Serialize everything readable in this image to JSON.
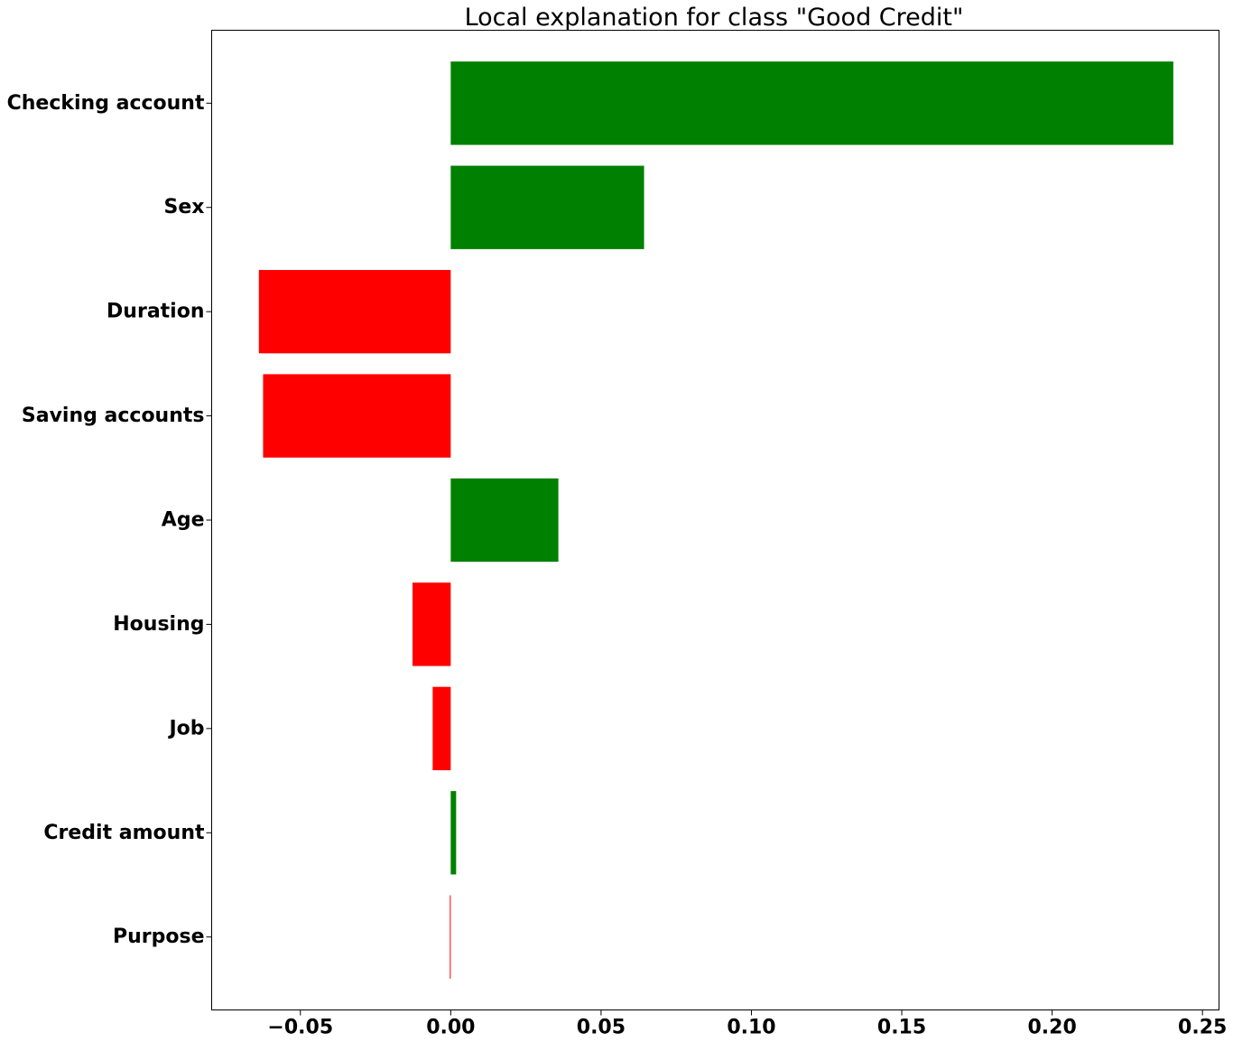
{
  "chart_data": {
    "type": "bar",
    "orientation": "horizontal",
    "title": "Local explanation for class \"Good Credit\"",
    "xlabel": "",
    "ylabel": "",
    "xlim": [
      -0.0795,
      0.2555
    ],
    "ylim": [
      -0.7,
      8.7
    ],
    "grid": false,
    "categories": [
      "Purpose",
      "Credit amount",
      "Job",
      "Housing",
      "Age",
      "Saving accounts",
      "Duration",
      "Sex",
      "Checking account"
    ],
    "values": [
      -0.0003,
      0.0018,
      -0.006,
      -0.0127,
      0.0358,
      -0.0624,
      -0.0638,
      0.0643,
      0.2403
    ],
    "x_ticks": [
      {
        "value": -0.05,
        "label": "−0.05"
      },
      {
        "value": 0.0,
        "label": "0.00"
      },
      {
        "value": 0.05,
        "label": "0.05"
      },
      {
        "value": 0.1,
        "label": "0.10"
      },
      {
        "value": 0.15,
        "label": "0.15"
      },
      {
        "value": 0.2,
        "label": "0.20"
      },
      {
        "value": 0.25,
        "label": "0.25"
      }
    ],
    "colors": {
      "positive": "#008000",
      "negative": "#ff0000",
      "axis": "#000000"
    }
  }
}
